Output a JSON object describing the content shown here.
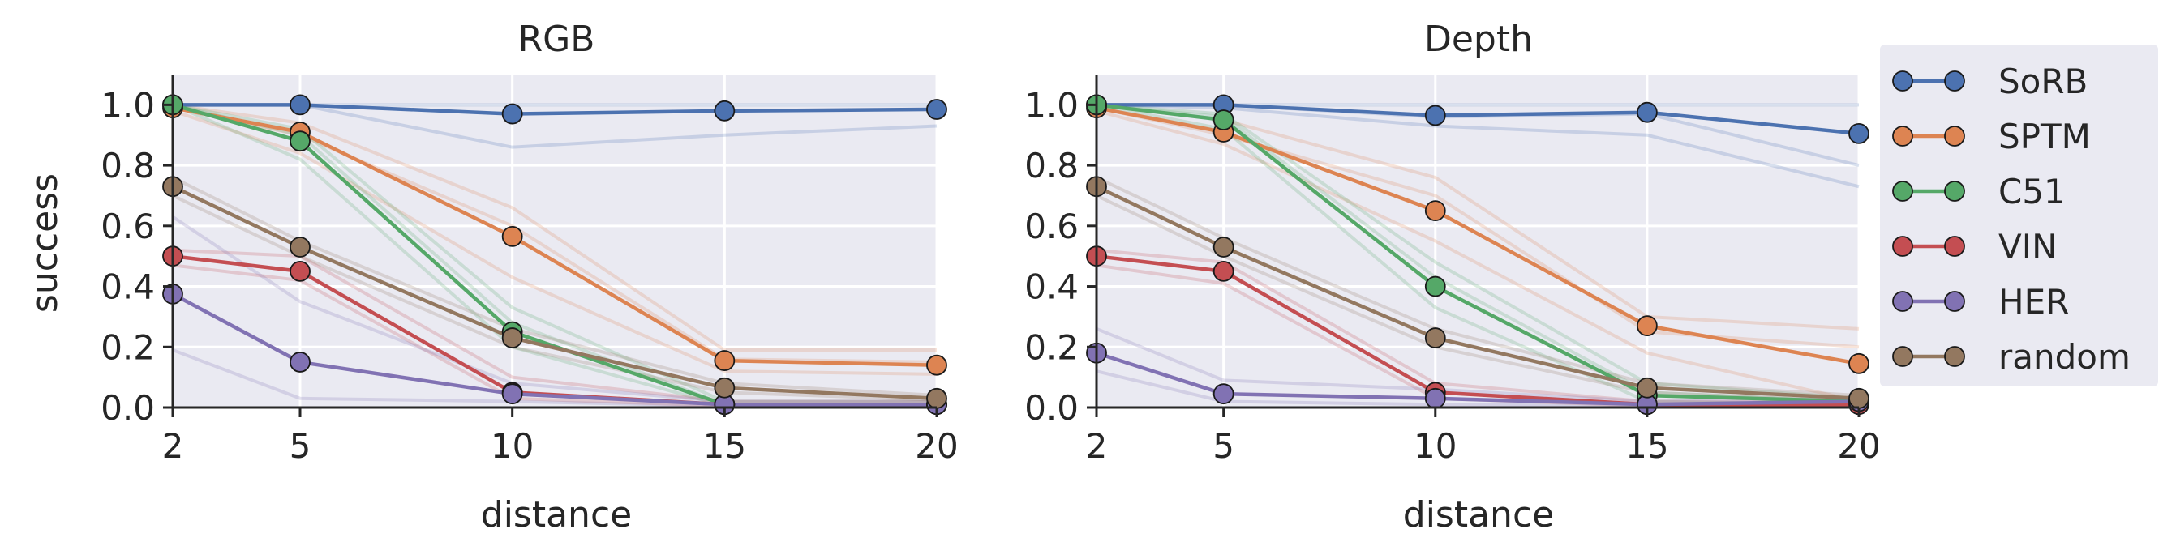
{
  "chart_data": [
    {
      "type": "line",
      "title": "RGB",
      "xlabel": "distance",
      "ylabel": "success",
      "x": [
        2,
        5,
        10,
        15,
        20
      ],
      "xticks": [
        2,
        5,
        10,
        15,
        20
      ],
      "xlim": [
        2,
        20
      ],
      "yticks": [
        0.0,
        0.2,
        0.4,
        0.6,
        0.8,
        1.0
      ],
      "ytick_labels": [
        "0.0",
        "0.2",
        "0.4",
        "0.6",
        "0.8",
        "1.0"
      ],
      "ylim": [
        0,
        1.1
      ],
      "grid": true,
      "series": [
        {
          "name": "SoRB",
          "values": [
            1.0,
            1.0,
            0.97,
            0.98,
            0.985
          ],
          "runs": [
            [
              1.0,
              1.0,
              1.0,
              1.0,
              1.0
            ],
            [
              1.0,
              1.0,
              0.86,
              0.9,
              0.93
            ]
          ]
        },
        {
          "name": "SPTM",
          "values": [
            0.99,
            0.91,
            0.565,
            0.155,
            0.14
          ],
          "runs": [
            [
              1.0,
              0.94,
              0.66,
              0.19,
              0.19
            ],
            [
              0.98,
              0.84,
              0.43,
              0.12,
              0.11
            ],
            [
              0.99,
              0.9,
              0.6,
              0.16,
              0.15
            ]
          ]
        },
        {
          "name": "C51",
          "values": [
            1.0,
            0.88,
            0.25,
            0.01,
            0.01
          ],
          "runs": [
            [
              1.0,
              0.92,
              0.33,
              0.02,
              0.02
            ],
            [
              1.0,
              0.82,
              0.2,
              0.005,
              0.005
            ],
            [
              1.0,
              0.9,
              0.28,
              0.01,
              0.01
            ]
          ]
        },
        {
          "name": "VIN",
          "values": [
            0.5,
            0.45,
            0.05,
            0.01,
            0.01
          ],
          "runs": [
            [
              0.52,
              0.5,
              0.1,
              0.02,
              0.02
            ],
            [
              0.47,
              0.42,
              0.03,
              0.005,
              0.005
            ]
          ]
        },
        {
          "name": "HER",
          "values": [
            0.375,
            0.15,
            0.045,
            0.01,
            0.01
          ],
          "runs": [
            [
              0.63,
              0.35,
              0.08,
              0.02,
              0.02
            ],
            [
              0.19,
              0.03,
              0.02,
              0.005,
              0.005
            ]
          ]
        },
        {
          "name": "random",
          "values": [
            0.73,
            0.53,
            0.23,
            0.065,
            0.03
          ],
          "runs": [
            [
              0.76,
              0.55,
              0.26,
              0.08,
              0.04
            ],
            [
              0.7,
              0.5,
              0.2,
              0.05,
              0.025
            ]
          ]
        }
      ]
    },
    {
      "type": "line",
      "title": "Depth",
      "xlabel": "distance",
      "ylabel": "",
      "x": [
        2,
        5,
        10,
        15,
        20
      ],
      "xticks": [
        2,
        5,
        10,
        15,
        20
      ],
      "xlim": [
        2,
        20
      ],
      "yticks": [
        0.0,
        0.2,
        0.4,
        0.6,
        0.8,
        1.0
      ],
      "ytick_labels": [
        "0.0",
        "0.2",
        "0.4",
        "0.6",
        "0.8",
        "1.0"
      ],
      "ylim": [
        0,
        1.1
      ],
      "grid": true,
      "series": [
        {
          "name": "SoRB",
          "values": [
            1.0,
            1.0,
            0.965,
            0.975,
            0.905
          ],
          "runs": [
            [
              1.0,
              1.0,
              1.0,
              1.0,
              1.0
            ],
            [
              1.0,
              0.99,
              0.93,
              0.9,
              0.73
            ],
            [
              1.0,
              1.0,
              0.96,
              0.97,
              0.8
            ]
          ]
        },
        {
          "name": "SPTM",
          "values": [
            0.99,
            0.91,
            0.65,
            0.27,
            0.145
          ],
          "runs": [
            [
              1.0,
              0.95,
              0.76,
              0.3,
              0.26
            ],
            [
              0.98,
              0.87,
              0.55,
              0.18,
              0.02
            ],
            [
              0.99,
              0.9,
              0.7,
              0.25,
              0.2
            ]
          ]
        },
        {
          "name": "C51",
          "values": [
            1.0,
            0.95,
            0.4,
            0.04,
            0.02
          ],
          "runs": [
            [
              1.0,
              0.97,
              0.48,
              0.08,
              0.03
            ],
            [
              1.0,
              0.92,
              0.33,
              0.02,
              0.01
            ],
            [
              1.0,
              0.96,
              0.43,
              0.05,
              0.02
            ]
          ]
        },
        {
          "name": "VIN",
          "values": [
            0.5,
            0.45,
            0.05,
            0.01,
            0.01
          ],
          "runs": [
            [
              0.52,
              0.48,
              0.08,
              0.02,
              0.02
            ],
            [
              0.47,
              0.41,
              0.03,
              0.005,
              0.005
            ]
          ]
        },
        {
          "name": "HER",
          "values": [
            0.18,
            0.045,
            0.03,
            0.01,
            0.02
          ],
          "runs": [
            [
              0.26,
              0.09,
              0.06,
              0.02,
              0.03
            ],
            [
              0.12,
              0.02,
              0.01,
              0.005,
              0.01
            ]
          ]
        },
        {
          "name": "random",
          "values": [
            0.73,
            0.53,
            0.23,
            0.065,
            0.03
          ],
          "runs": [
            [
              0.76,
              0.56,
              0.26,
              0.08,
              0.04
            ],
            [
              0.7,
              0.5,
              0.2,
              0.05,
              0.02
            ]
          ]
        }
      ]
    }
  ],
  "legend": {
    "placement": "right",
    "items": [
      "SoRB",
      "SPTM",
      "C51",
      "VIN",
      "HER",
      "random"
    ]
  },
  "colors": {
    "SoRB": "#4c72b0",
    "SPTM": "#dd8452",
    "C51": "#55a868",
    "VIN": "#c44e52",
    "HER": "#8172b3",
    "random": "#937860",
    "plot_background": "#eaeaf2",
    "grid": "#ffffff",
    "text": "#262626"
  }
}
